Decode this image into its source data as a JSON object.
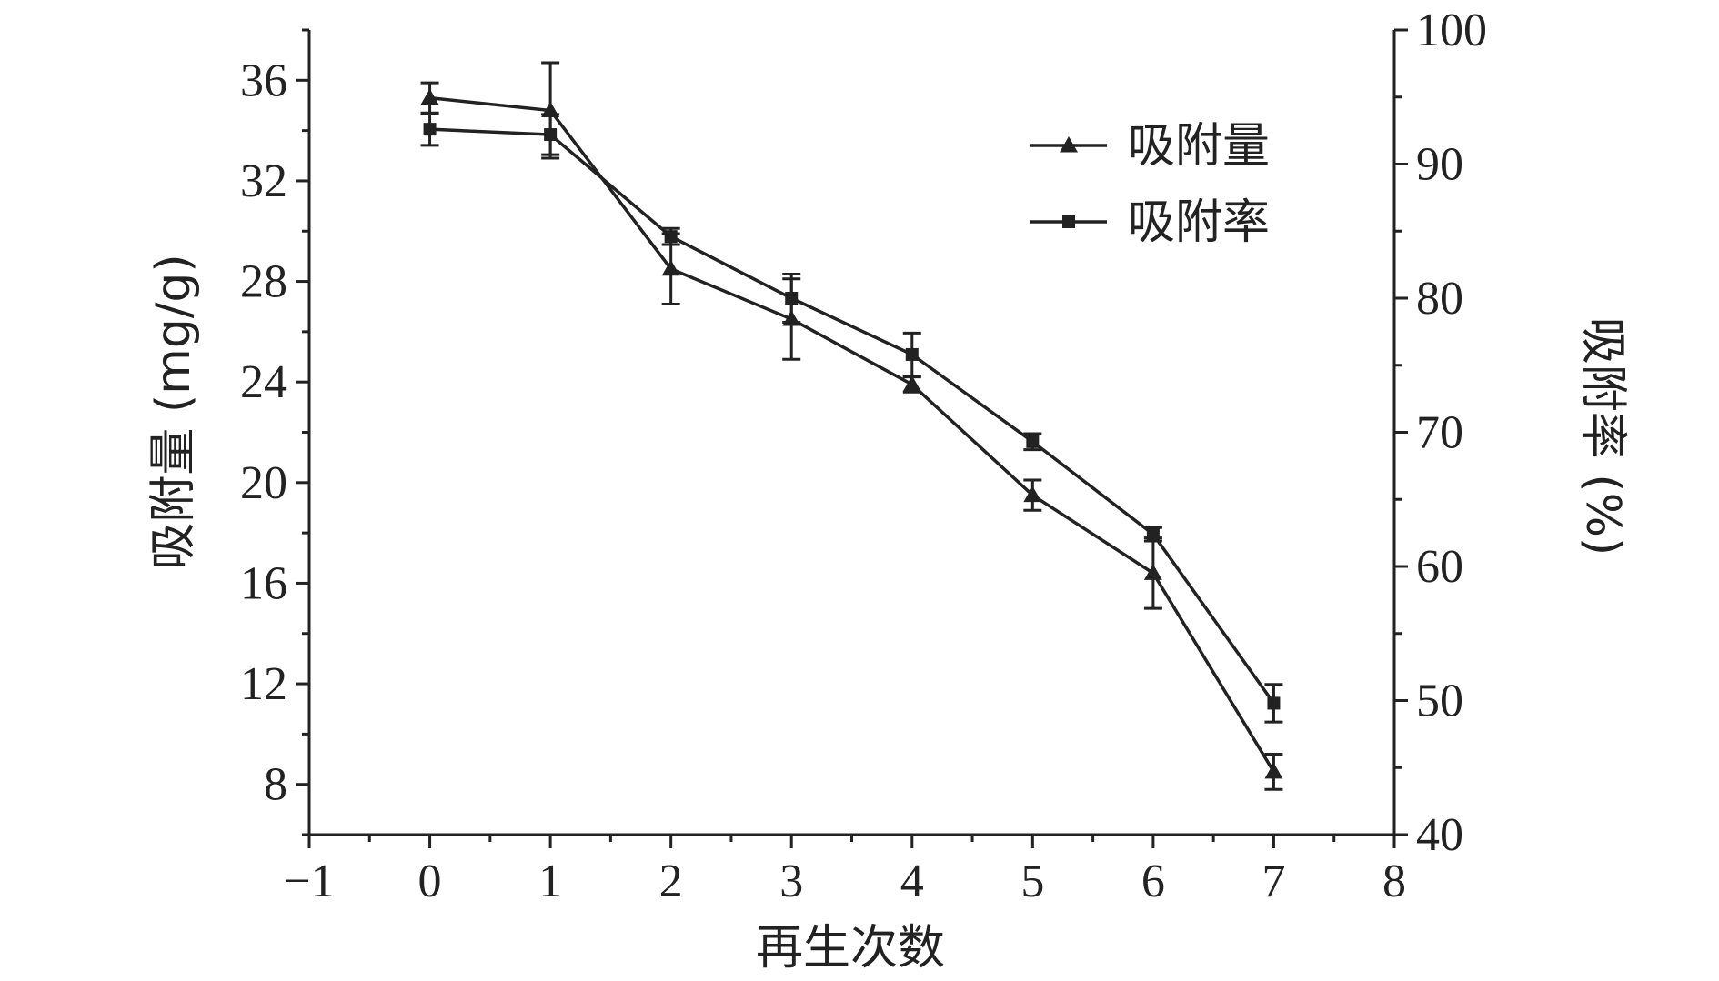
{
  "chart_data": {
    "type": "line",
    "xlabel": "再生次数",
    "ylabel": "吸附量 (mg/g)",
    "y2label": "吸附率 (%)",
    "x": [
      0,
      1,
      2,
      3,
      4,
      5,
      6,
      7
    ],
    "xlim": [
      -1,
      8
    ],
    "xticks": [
      -1,
      0,
      1,
      2,
      3,
      4,
      5,
      6,
      7,
      8
    ],
    "xtick_labels": [
      "−1",
      "0",
      "1",
      "2",
      "3",
      "4",
      "5",
      "6",
      "7",
      "8"
    ],
    "ylim": [
      6,
      38
    ],
    "yticks": [
      8,
      12,
      16,
      20,
      24,
      28,
      32,
      36
    ],
    "y2lim": [
      40,
      100
    ],
    "y2ticks": [
      40,
      50,
      60,
      70,
      80,
      90,
      100
    ],
    "legend_position": "top-right",
    "series": [
      {
        "name": "吸附量",
        "axis": "left",
        "marker": "triangle",
        "values": [
          35.3,
          34.8,
          28.5,
          26.5,
          23.9,
          19.5,
          16.4,
          8.5
        ],
        "errors": [
          0.6,
          1.9,
          1.4,
          1.6,
          0.3,
          0.6,
          1.4,
          0.7
        ]
      },
      {
        "name": "吸附率",
        "axis": "right",
        "marker": "square",
        "values": [
          92.6,
          92.2,
          84.6,
          80.0,
          75.8,
          69.3,
          62.4,
          49.8
        ],
        "errors": [
          1.2,
          1.5,
          0.6,
          1.8,
          1.6,
          0.6,
          0.5,
          1.4
        ]
      }
    ]
  }
}
